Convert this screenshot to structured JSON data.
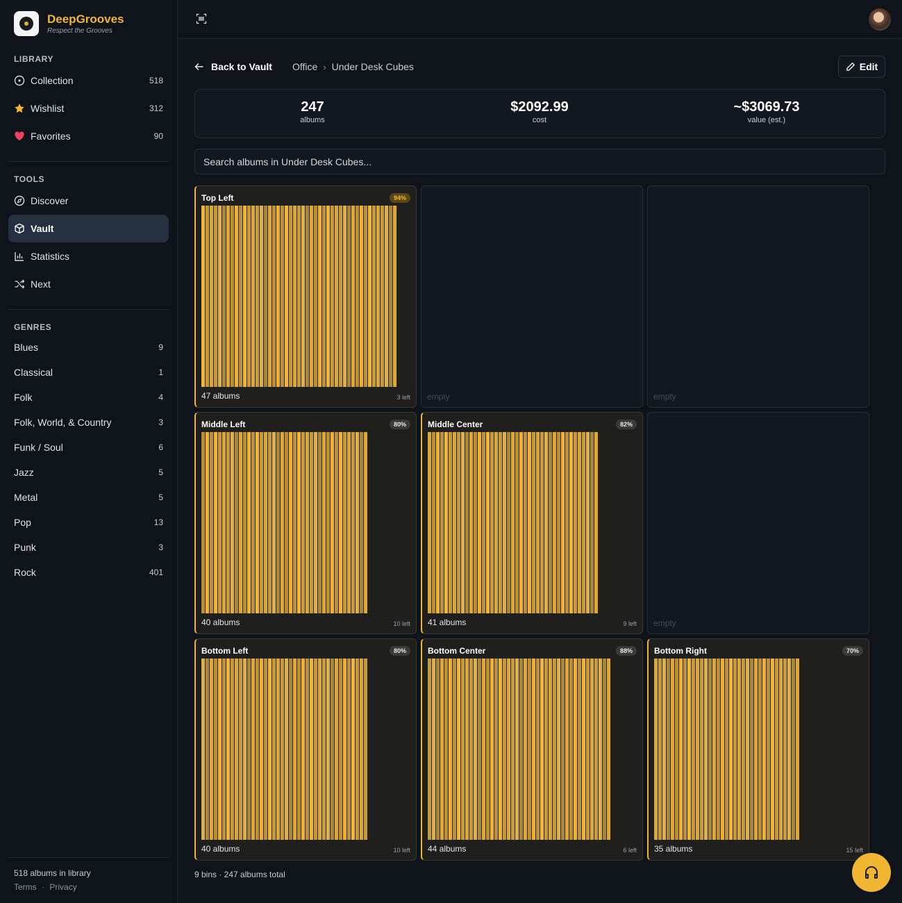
{
  "app": {
    "name": "DeepGrooves",
    "tagline": "Respect the Grooves"
  },
  "library": {
    "title": "LIBRARY",
    "items": [
      {
        "label": "Collection",
        "count": "518",
        "icon": "disc-icon"
      },
      {
        "label": "Wishlist",
        "count": "312",
        "icon": "star-icon"
      },
      {
        "label": "Favorites",
        "count": "90",
        "icon": "heart-icon"
      }
    ]
  },
  "tools": {
    "title": "TOOLS",
    "items": [
      {
        "label": "Discover",
        "icon": "compass-icon"
      },
      {
        "label": "Vault",
        "icon": "box-icon"
      },
      {
        "label": "Statistics",
        "icon": "bar-chart-icon"
      },
      {
        "label": "Next",
        "icon": "shuffle-icon"
      }
    ]
  },
  "genres": {
    "title": "GENRES",
    "items": [
      {
        "label": "Blues",
        "count": "9"
      },
      {
        "label": "Classical",
        "count": "1"
      },
      {
        "label": "Folk",
        "count": "4"
      },
      {
        "label": "Folk, World, & Country",
        "count": "3"
      },
      {
        "label": "Funk / Soul",
        "count": "6"
      },
      {
        "label": "Jazz",
        "count": "5"
      },
      {
        "label": "Metal",
        "count": "5"
      },
      {
        "label": "Pop",
        "count": "13"
      },
      {
        "label": "Punk",
        "count": "3"
      },
      {
        "label": "Rock",
        "count": "401"
      }
    ]
  },
  "footer": {
    "summary": "518 albums in library",
    "terms": "Terms",
    "sep": "·",
    "privacy": "Privacy"
  },
  "header": {
    "back": "Back to Vault",
    "crumbs": [
      "Office",
      "Under Desk Cubes"
    ],
    "edit": "Edit"
  },
  "stats": [
    {
      "value": "247",
      "label": "albums"
    },
    {
      "value": "$2092.99",
      "label": "cost"
    },
    {
      "value": "~$3069.73",
      "label": "value (est.)"
    }
  ],
  "search": {
    "placeholder": "Search albums in Under Desk Cubes..."
  },
  "bins": [
    {
      "name": "Top Left",
      "percent": "94%",
      "fill": 0.94,
      "count": "47 albums",
      "left": "3 left",
      "albums": 47
    },
    {
      "name": "",
      "empty": "empty"
    },
    {
      "name": "",
      "empty": "empty"
    },
    {
      "name": "Middle Left",
      "percent": "80%",
      "fill": 0.8,
      "count": "40 albums",
      "left": "10 left",
      "albums": 40
    },
    {
      "name": "Middle Center",
      "percent": "82%",
      "fill": 0.82,
      "count": "41 albums",
      "left": "9 left",
      "albums": 41
    },
    {
      "name": "",
      "empty": "empty"
    },
    {
      "name": "Bottom Left",
      "percent": "80%",
      "fill": 0.8,
      "count": "40 albums",
      "left": "10 left",
      "albums": 40
    },
    {
      "name": "Bottom Center",
      "percent": "88%",
      "fill": 0.88,
      "count": "44 albums",
      "left": "6 left",
      "albums": 44
    },
    {
      "name": "Bottom Right",
      "percent": "70%",
      "fill": 0.7,
      "count": "35 albums",
      "left": "15 left",
      "albums": 35
    }
  ],
  "total": "9 bins · 247 albums total",
  "colors": {
    "accent": "#f2b531",
    "bg": "#0f141a",
    "active": "#253140"
  }
}
